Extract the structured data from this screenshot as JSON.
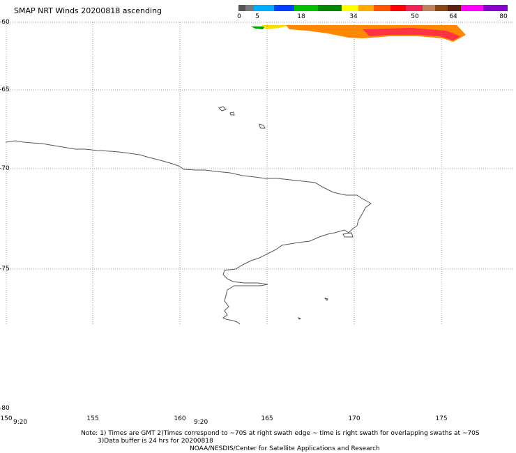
{
  "title": "SMAP NRT Winds 20200818 ascending",
  "color_scale": {
    "tick_labels": [
      "0",
      "5",
      "18",
      "34",
      "50",
      "64",
      "80"
    ],
    "segments": [
      {
        "color": "#555555",
        "from": 0,
        "to": 5
      },
      {
        "color": "#7a7a7a",
        "from": 0,
        "to": 5
      },
      {
        "color": "#00aaff",
        "from": 5,
        "to": 11
      },
      {
        "color": "#0040ff",
        "from": 11,
        "to": 18
      },
      {
        "color": "#00c000",
        "from": 18,
        "to": 26
      },
      {
        "color": "#008800",
        "from": 26,
        "to": 34
      },
      {
        "color": "#ffff00",
        "from": 34,
        "to": 39
      },
      {
        "color": "#ffaa00",
        "from": 39,
        "to": 45
      },
      {
        "color": "#ff5500",
        "from": 45,
        "to": 50
      },
      {
        "color": "#ff0000",
        "from": 50,
        "to": 55
      },
      {
        "color": "#ee2255",
        "from": 55,
        "to": 60
      },
      {
        "color": "#c08060",
        "from": 60,
        "to": 64
      },
      {
        "color": "#8b4513",
        "from": 64,
        "to": 68
      },
      {
        "color": "#5a2010",
        "from": 68,
        "to": 72
      },
      {
        "color": "#ff00ff",
        "from": 72,
        "to": 76
      },
      {
        "color": "#8800cc",
        "from": 76,
        "to": 80
      }
    ]
  },
  "latitude_labels": [
    "-60",
    "-65",
    "-70",
    "-75",
    "-80"
  ],
  "longitude_labels": [
    "150",
    "155",
    "160",
    "165",
    "170",
    "175"
  ],
  "time_labels": [
    "9:20",
    "9:20"
  ],
  "note_line1": "Note: 1) Times are GMT 2)Times correspond to ~70S at right swath edge ~ time is right swath for overlapping swaths at ~70S",
  "note_line2": "3)Data buffer is 24 hrs for 20200818",
  "credit": "NOAA/NESDIS/Center for Satellite Applications and Research",
  "wind_colors": {
    "green": "#00a000",
    "yellow": "#ffdd00",
    "orange": "#ff8800",
    "red": "#ff3344",
    "dark_red": "#ff2a2a"
  },
  "coastline_color": "#555555"
}
